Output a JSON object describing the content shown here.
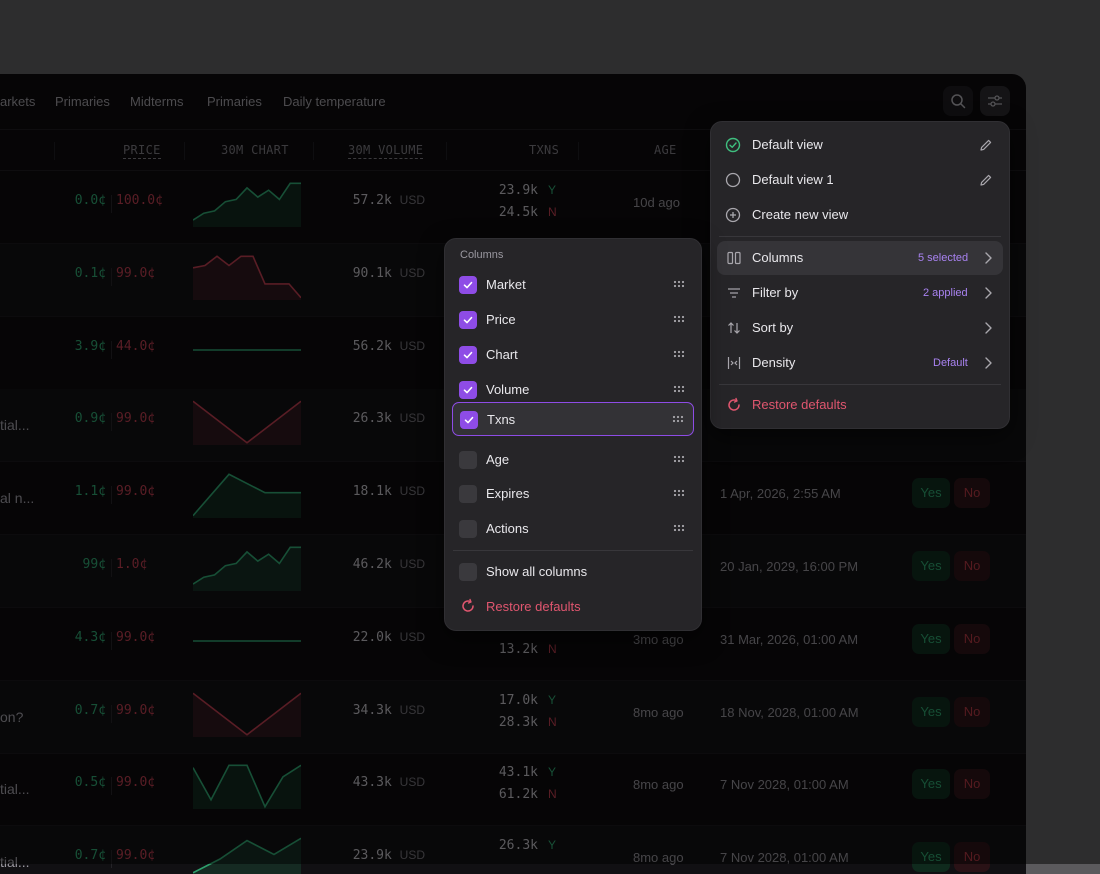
{
  "tabs": [
    "arkets",
    "Primaries",
    "Midterms",
    "Primaries",
    "Daily temperature"
  ],
  "columns": {
    "price": "PRICE",
    "chart": "30M CHART",
    "volume": "30M VOLUME",
    "txns": "TXNS",
    "age": "AGE"
  },
  "rows": [
    {
      "market": "",
      "yes": "0.0¢",
      "no": "100.0¢",
      "volume": "57.2k",
      "unit": "USD",
      "tx_yes": "23.9k",
      "tx_no": "24.5k",
      "age": "10d ago",
      "expires": "",
      "yes_label": "",
      "no_label": "",
      "trend": "up",
      "spark": [
        0.15,
        0.3,
        0.35,
        0.55,
        0.6,
        0.85,
        0.65,
        0.8,
        0.6,
        0.95,
        0.95
      ]
    },
    {
      "market": "",
      "yes": "0.1¢",
      "no": "99.0¢",
      "volume": "90.1k",
      "unit": "USD",
      "tx_yes": "",
      "tx_no": "",
      "age": "",
      "expires": "",
      "yes_label": "",
      "no_label": "",
      "trend": "down",
      "spark": [
        0.7,
        0.75,
        0.95,
        0.75,
        0.95,
        0.95,
        0.35,
        0.35,
        0.35,
        0.05
      ]
    },
    {
      "market": "",
      "yes": "3.9¢",
      "no": "44.0¢",
      "volume": "56.2k",
      "unit": "USD",
      "tx_yes": "",
      "tx_no": "",
      "age": "",
      "expires": "",
      "yes_label": "",
      "no_label": "",
      "trend": "flat",
      "spark": [
        0.5,
        0.5
      ]
    },
    {
      "market": "tial...",
      "yes": "0.9¢",
      "no": "99.0¢",
      "volume": "26.3k",
      "unit": "USD",
      "tx_yes": "",
      "tx_no": "",
      "age": "",
      "expires": "",
      "yes_label": "",
      "no_label": "",
      "trend": "down",
      "spark": [
        0.95,
        0.05,
        0.95
      ]
    },
    {
      "market": "al n...",
      "yes": "1.1¢",
      "no": "99.0¢",
      "volume": "18.1k",
      "unit": "USD",
      "tx_yes": "",
      "tx_no": "",
      "age": "",
      "expires": "1 Apr, 2026, 2:55 AM",
      "yes_label": "Yes",
      "no_label": "No",
      "trend": "up",
      "spark": [
        0.05,
        0.95,
        0.55,
        0.55
      ]
    },
    {
      "market": "",
      "yes": "99¢",
      "no": "1.0¢",
      "volume": "46.2k",
      "unit": "USD",
      "tx_yes": "",
      "tx_no": "",
      "age": "",
      "expires": "20 Jan, 2029, 16:00 PM",
      "yes_label": "Yes",
      "no_label": "No",
      "trend": "up",
      "spark": [
        0.15,
        0.3,
        0.35,
        0.55,
        0.6,
        0.85,
        0.65,
        0.8,
        0.6,
        0.95,
        0.95
      ]
    },
    {
      "market": "",
      "yes": "4.3¢",
      "no": "99.0¢",
      "volume": "22.0k",
      "unit": "USD",
      "tx_yes": "",
      "tx_no": "13.2k",
      "age": "3mo ago",
      "expires": "31 Mar, 2026, 01:00 AM",
      "yes_label": "Yes",
      "no_label": "No",
      "trend": "flat",
      "spark": [
        0.5,
        0.5
      ]
    },
    {
      "market": "on?",
      "yes": "0.7¢",
      "no": "99.0¢",
      "volume": "34.3k",
      "unit": "USD",
      "tx_yes": "17.0k",
      "tx_no": "28.3k",
      "age": "8mo ago",
      "expires": "18 Nov, 2028, 01:00 AM",
      "yes_label": "Yes",
      "no_label": "No",
      "trend": "down",
      "spark": [
        0.95,
        0.05,
        0.95
      ]
    },
    {
      "market": "tial...",
      "yes": "0.5¢",
      "no": "99.0¢",
      "volume": "43.3k",
      "unit": "USD",
      "tx_yes": "43.1k",
      "tx_no": "61.2k",
      "age": "8mo ago",
      "expires": "7 Nov 2028, 01:00 AM",
      "yes_label": "Yes",
      "no_label": "No",
      "trend": "up",
      "spark": [
        0.9,
        0.2,
        0.95,
        0.95,
        0.05,
        0.7,
        0.95
      ]
    },
    {
      "market": "tial...",
      "yes": "0.7¢",
      "no": "99.0¢",
      "volume": "23.9k",
      "unit": "USD",
      "tx_yes": "26.3k",
      "tx_no": "",
      "age": "8mo ago",
      "expires": "7 Nov 2028, 01:00 AM",
      "yes_label": "Yes",
      "no_label": "No",
      "trend": "up",
      "spark": [
        0.2,
        0.5,
        0.9,
        0.6,
        0.95
      ]
    }
  ],
  "tx_marks": {
    "yes": "Y",
    "no": "N"
  },
  "view_menu": {
    "views": [
      {
        "label": "Default view",
        "active": true
      },
      {
        "label": "Default view 1",
        "active": false
      }
    ],
    "create": "Create new view",
    "items": [
      {
        "label": "Columns",
        "badge": "5 selected",
        "icon": "columns-icon"
      },
      {
        "label": "Filter by",
        "badge": "2 applied",
        "icon": "filter-icon"
      },
      {
        "label": "Sort by",
        "badge": "",
        "icon": "sort-icon"
      },
      {
        "label": "Density",
        "badge": "Default",
        "icon": "density-icon"
      }
    ],
    "restore": "Restore defaults"
  },
  "columns_menu": {
    "title": "Columns",
    "items": [
      {
        "label": "Market",
        "checked": true
      },
      {
        "label": "Price",
        "checked": true
      },
      {
        "label": "Chart",
        "checked": true
      },
      {
        "label": "Volume",
        "checked": true
      },
      {
        "label": "Txns",
        "checked": true
      },
      {
        "label": "Age",
        "checked": false
      },
      {
        "label": "Expires",
        "checked": false
      },
      {
        "label": "Actions",
        "checked": false
      }
    ],
    "show_all": "Show all columns",
    "restore": "Restore defaults"
  },
  "colors": {
    "accent": "#8e4ce6",
    "positive": "#2e9f6c",
    "negative": "#b23a4a",
    "badge": "#a882f0",
    "restore": "#e0566f"
  }
}
